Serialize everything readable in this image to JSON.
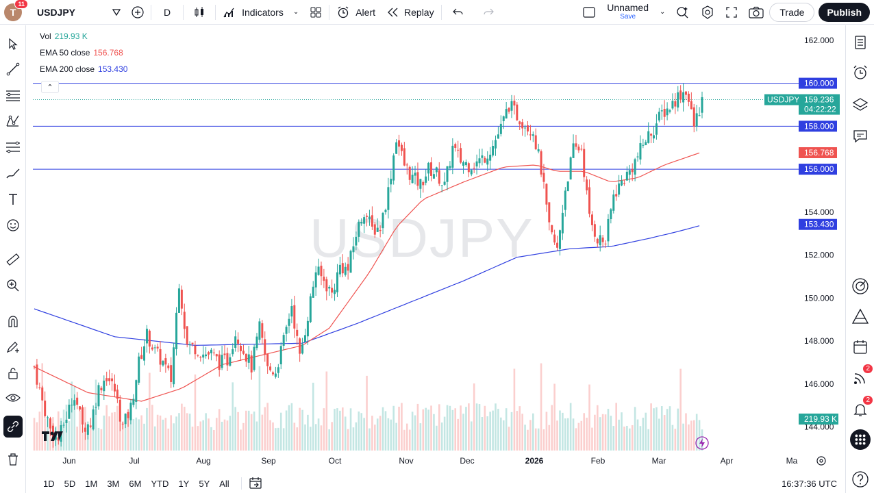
{
  "topbar": {
    "avatar_letter": "T",
    "avatar_badge": "11",
    "symbol": "USDJPY",
    "interval": "D",
    "indicators_label": "Indicators",
    "alert_label": "Alert",
    "replay_label": "Replay",
    "layout_name": "Unnamed",
    "layout_save": "Save",
    "trade_label": "Trade",
    "publish_label": "Publish"
  },
  "legend": {
    "vol_label": "Vol",
    "vol_value": "219.93 K",
    "ema50_label": "EMA 50 close",
    "ema50_value": "156.768",
    "ema200_label": "EMA 200 close",
    "ema200_value": "153.430",
    "collapse_icon": "chevron-up-icon"
  },
  "watermark": "USDJPY",
  "price_axis": {
    "labels": [
      "162.000",
      "154.000",
      "152.000",
      "150.000",
      "148.000",
      "146.000",
      "144.000"
    ],
    "h_lines": [
      "160.000",
      "158.000",
      "156.000"
    ],
    "symbol_tag": "USDJPY",
    "last_price": "159.236",
    "countdown": "04:22:22",
    "ema50_tag": "156.768",
    "ema200_tag": "153.430",
    "vol_tag": "219.93 K"
  },
  "time_axis": {
    "labels": [
      "Jun",
      "Jul",
      "Aug",
      "Sep",
      "Oct",
      "Nov",
      "Dec",
      "2026",
      "Feb",
      "Mar",
      "Apr",
      "Ma"
    ]
  },
  "bottombar": {
    "ranges": [
      "1D",
      "5D",
      "1M",
      "3M",
      "6M",
      "YTD",
      "1Y",
      "5Y",
      "All"
    ],
    "clock": "16:37:36 UTC"
  },
  "right_badges": {
    "streams": "2",
    "notifications": "2"
  },
  "colors": {
    "up": "#26a69a",
    "down": "#ef5350",
    "ema50": "#ef5350",
    "ema200": "#2f3fe0",
    "hline": "#2f3fe0",
    "accent": "#131722"
  },
  "chart_data": {
    "type": "candlestick",
    "symbol": "USDJPY",
    "interval": "D",
    "ylim": [
      143,
      162.6
    ],
    "horizontal_lines": [
      160.0,
      158.0,
      156.0
    ],
    "last_price": 159.236,
    "ema50_last": 156.768,
    "ema200_last": 153.43,
    "x_ticks": [
      "Jun",
      "Jul",
      "Aug",
      "Sep",
      "Oct",
      "Nov",
      "Dec",
      "2026",
      "Feb",
      "Mar",
      "Apr",
      "Ma"
    ],
    "close_path": [
      [
        0,
        146.8
      ],
      [
        3,
        145.2
      ],
      [
        6,
        143.9
      ],
      [
        9,
        143.4
      ],
      [
        12,
        144.5
      ],
      [
        15,
        145.6
      ],
      [
        18,
        144.0
      ],
      [
        21,
        144.2
      ],
      [
        24,
        145.8
      ],
      [
        27,
        146.4
      ],
      [
        30,
        145.7
      ],
      [
        33,
        144.0
      ],
      [
        36,
        144.9
      ],
      [
        39,
        147.0
      ],
      [
        42,
        148.3
      ],
      [
        45,
        147.5
      ],
      [
        48,
        147.0
      ],
      [
        51,
        146.2
      ],
      [
        54,
        150.8
      ],
      [
        57,
        147.8
      ],
      [
        60,
        147.7
      ],
      [
        63,
        147.4
      ],
      [
        66,
        147.4
      ],
      [
        69,
        147.0
      ],
      [
        72,
        147.1
      ],
      [
        75,
        148.4
      ],
      [
        78,
        147.6
      ],
      [
        81,
        146.8
      ],
      [
        84,
        148.6
      ],
      [
        87,
        146.7
      ],
      [
        90,
        146.6
      ],
      [
        93,
        148.0
      ],
      [
        96,
        149.7
      ],
      [
        99,
        147.2
      ],
      [
        102,
        149.2
      ],
      [
        105,
        151.3
      ],
      [
        108,
        150.8
      ],
      [
        111,
        150.2
      ],
      [
        114,
        151.5
      ],
      [
        117,
        151.3
      ],
      [
        120,
        153.0
      ],
      [
        123,
        154.1
      ],
      [
        126,
        153.2
      ],
      [
        129,
        153.3
      ],
      [
        132,
        155.0
      ],
      [
        135,
        157.5
      ],
      [
        138,
        156.2
      ],
      [
        141,
        155.6
      ],
      [
        144,
        155.3
      ],
      [
        147,
        156.0
      ],
      [
        150,
        155.8
      ],
      [
        153,
        155.2
      ],
      [
        156,
        157.0
      ],
      [
        159,
        156.4
      ],
      [
        162,
        156.2
      ],
      [
        165,
        156.3
      ],
      [
        168,
        156.6
      ],
      [
        171,
        157.1
      ],
      [
        174,
        157.9
      ],
      [
        177,
        159.0
      ],
      [
        180,
        158.5
      ],
      [
        183,
        158.1
      ],
      [
        186,
        157.8
      ],
      [
        189,
        156.0
      ],
      [
        192,
        153.2
      ],
      [
        195,
        152.2
      ],
      [
        198,
        155.1
      ],
      [
        201,
        156.9
      ],
      [
        204,
        157.0
      ],
      [
        207,
        153.7
      ],
      [
        210,
        152.8
      ],
      [
        213,
        152.6
      ],
      [
        216,
        154.8
      ],
      [
        219,
        155.4
      ],
      [
        222,
        155.9
      ],
      [
        225,
        156.6
      ],
      [
        228,
        157.4
      ],
      [
        231,
        157.9
      ],
      [
        234,
        158.6
      ],
      [
        237,
        158.9
      ],
      [
        240,
        159.4
      ],
      [
        243,
        159.7
      ],
      [
        246,
        158.0
      ],
      [
        249,
        159.2
      ]
    ],
    "ema50_path": [
      [
        0,
        146.8
      ],
      [
        20,
        145.6
      ],
      [
        40,
        145.2
      ],
      [
        55,
        145.8
      ],
      [
        70,
        146.9
      ],
      [
        90,
        147.5
      ],
      [
        100,
        147.8
      ],
      [
        110,
        148.6
      ],
      [
        125,
        151.2
      ],
      [
        135,
        153.3
      ],
      [
        145,
        154.6
      ],
      [
        160,
        155.4
      ],
      [
        175,
        156.1
      ],
      [
        187,
        156.2
      ],
      [
        195,
        155.9
      ],
      [
        205,
        155.9
      ],
      [
        215,
        155.4
      ],
      [
        225,
        155.6
      ],
      [
        235,
        156.2
      ],
      [
        249,
        156.8
      ]
    ],
    "ema200_path": [
      [
        0,
        149.5
      ],
      [
        30,
        148.2
      ],
      [
        60,
        147.8
      ],
      [
        100,
        147.9
      ],
      [
        120,
        148.8
      ],
      [
        140,
        149.8
      ],
      [
        160,
        150.8
      ],
      [
        180,
        151.9
      ],
      [
        190,
        152.1
      ],
      [
        200,
        152.3
      ],
      [
        215,
        152.4
      ],
      [
        230,
        152.8
      ],
      [
        240,
        153.1
      ],
      [
        249,
        153.4
      ]
    ]
  }
}
